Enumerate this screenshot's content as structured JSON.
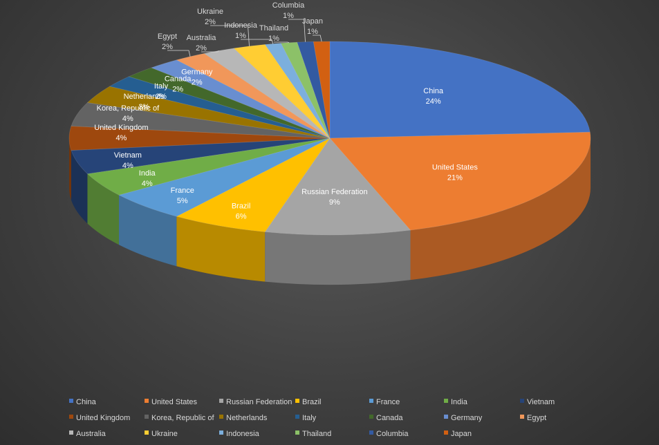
{
  "chart_data": {
    "type": "pie",
    "style": "3d",
    "categories": [
      "China",
      "United States",
      "Russian Federation",
      "Brazil",
      "France",
      "India",
      "Vietnam",
      "United Kingdom",
      "Korea, Republic of",
      "Netherlands",
      "Italy",
      "Canada",
      "Germany",
      "Egypt",
      "Australia",
      "Ukraine",
      "Indonesia",
      "Thailand",
      "Columbia",
      "Japan"
    ],
    "values": [
      24,
      21,
      9,
      6,
      5,
      4,
      4,
      4,
      4,
      3,
      2,
      2,
      2,
      2,
      2,
      2,
      1,
      1,
      1,
      1
    ],
    "value_labels": [
      "24%",
      "21%",
      "9%",
      "6%",
      "5%",
      "4%",
      "4%",
      "4%",
      "4%",
      "3%",
      "2%",
      "2%",
      "2%",
      "2%",
      "2%",
      "2%",
      "1%",
      "1%",
      "1%",
      "1%"
    ],
    "colors": [
      "#4472C4",
      "#ED7D31",
      "#A5A5A5",
      "#FFC000",
      "#5B9BD5",
      "#70AD47",
      "#264478",
      "#9E480E",
      "#636363",
      "#997300",
      "#255E91",
      "#43682B",
      "#698ED0",
      "#F1975A",
      "#B7B7B7",
      "#FFCD33",
      "#7CAFDD",
      "#8CC168",
      "#335AA1",
      "#D26012"
    ],
    "legend_position": "bottom",
    "title": ""
  }
}
